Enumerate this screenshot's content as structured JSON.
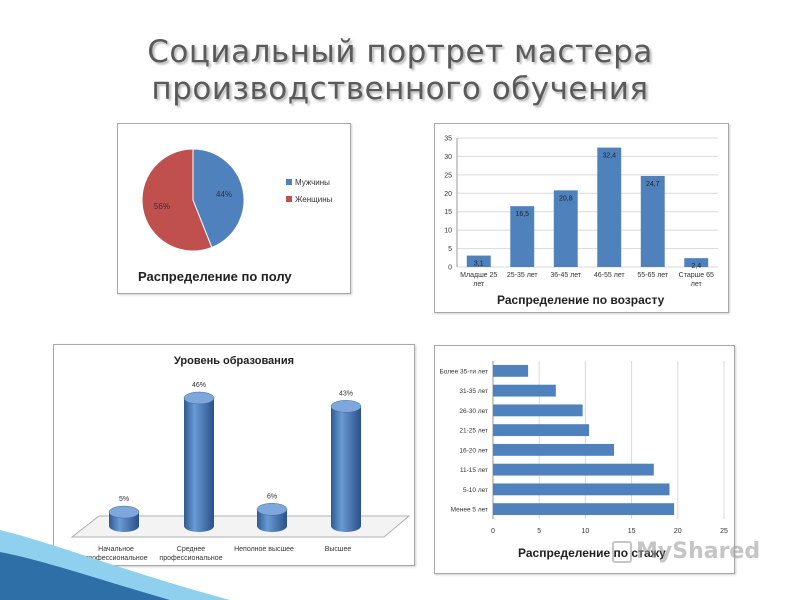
{
  "slide": {
    "title_line1": "Социальный портрет мастера",
    "title_line2": "производственного обучения"
  },
  "colors": {
    "bar": "#4f81bd",
    "pie_men": "#4f81bd",
    "pie_women": "#c0504d",
    "deco_blue": "#2f6fa8",
    "deco_cyan": "#8fd0ef"
  },
  "watermark": "MyShared",
  "chart_data": [
    {
      "id": "gender",
      "type": "pie",
      "title": "Распределение по полу",
      "labels": [
        "Мужчины",
        "Женщины"
      ],
      "values": [
        44,
        56
      ],
      "value_labels": [
        "44%",
        "56%"
      ],
      "legend_position": "right"
    },
    {
      "id": "age",
      "type": "bar",
      "title": "Распределение по возрасту",
      "categories": [
        "Младше 25 лет",
        "25-35 лет",
        "36-45 лет",
        "46-55 лет",
        "55-65 лет",
        "Старше 65 лет"
      ],
      "values": [
        3.1,
        16.5,
        20.8,
        32.4,
        24.7,
        2.4
      ],
      "value_labels": [
        "3,1",
        "16,5",
        "20,8",
        "32,4",
        "24,7",
        "2,4"
      ],
      "ylim": [
        0,
        35
      ],
      "yticks": [
        "0",
        "5",
        "10",
        "15",
        "20",
        "25",
        "30",
        "35"
      ],
      "grid": true
    },
    {
      "id": "education",
      "type": "bar",
      "style": "3d-cylinder",
      "title": "Уровень образования",
      "categories": [
        "Начальное профессиональное",
        "Среднее профессиональное",
        "Неполное высшее",
        "Высшее"
      ],
      "values": [
        5,
        46,
        6,
        43
      ],
      "value_labels": [
        "5%",
        "46%",
        "6%",
        "43%"
      ]
    },
    {
      "id": "experience",
      "type": "bar",
      "orientation": "horizontal",
      "title": "Распределение по стажу",
      "categories": [
        "Более 35-ти лет",
        "31-35 лет",
        "26-30 лет",
        "21-25 лет",
        "16-20 лет",
        "11-15 лет",
        "5-10 лет",
        "Менее 5 лет"
      ],
      "values": [
        3.8,
        6.8,
        9.7,
        10.4,
        13.1,
        17.4,
        19.1,
        19.6
      ],
      "xlim": [
        0,
        25
      ],
      "xticks": [
        "0",
        "5",
        "10",
        "15",
        "20",
        "25"
      ],
      "grid": true
    }
  ]
}
